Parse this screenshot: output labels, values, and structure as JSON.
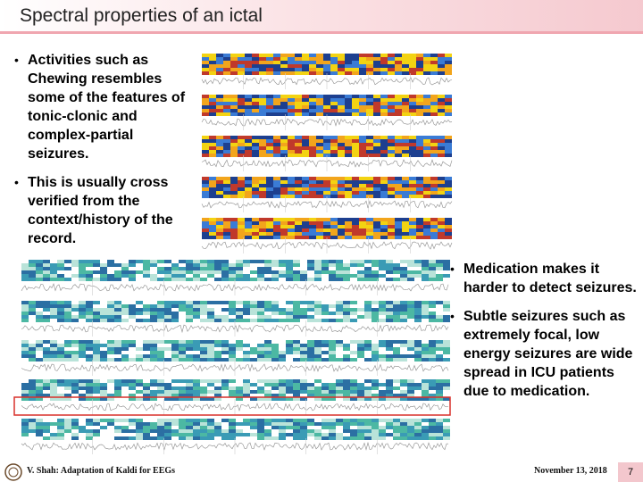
{
  "slide": {
    "title": "Spectral properties of an ictal",
    "left_bullets": [
      "Activities such as Chewing resembles some of the features of tonic-clonic and complex-partial seizures.",
      "This is usually cross verified from the context/history of the record."
    ],
    "right_bullets": [
      "Medication makes it harder to detect seizures.",
      "Subtle seizures such as extremely focal, low energy seizures are wide spread in ICU patients due to medication."
    ],
    "bullet_symbol": "•",
    "footer": {
      "author": "V. Shah: Adaptation of Kaldi for EEGs",
      "date": "November 13, 2018",
      "page": "7"
    }
  },
  "colors": {
    "title_gradient_end": "#f5c9cf",
    "title_border": "#f0a6b0",
    "highlight_box": "#d9312b",
    "spectrogram_top_palette": [
      "#1d3f8f",
      "#3a7bd5",
      "#f3d312",
      "#f2a51c",
      "#c0392b"
    ],
    "spectrogram_bottom_palette": [
      "#2b6fa3",
      "#3a9bb5",
      "#4cb8a3",
      "#b9e3d9",
      "#ffffff"
    ]
  },
  "icons": {
    "footer_logo": "university-seal-icon"
  }
}
